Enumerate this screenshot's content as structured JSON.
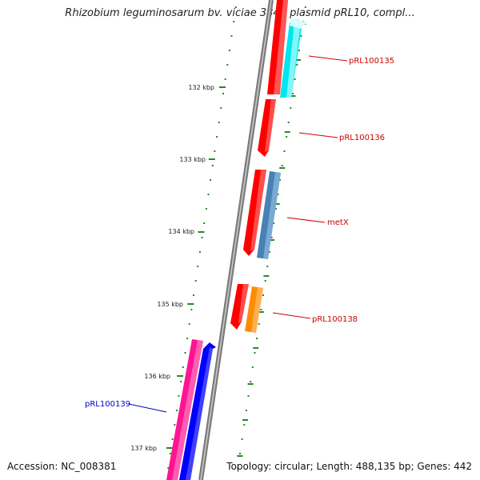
{
  "title": "Rhizobium leguminosarum bv. viciae 3841 plasmid pRL10, compl...",
  "footer": {
    "accession": "Accession: NC_008381",
    "summary": "Topology: circular; Length: 488,135 bp; Genes: 442"
  },
  "ticks": [
    {
      "label": "132 kbp",
      "kbp": 132
    },
    {
      "label": "133 kbp",
      "kbp": 133
    },
    {
      "label": "134 kbp",
      "kbp": 134
    },
    {
      "label": "135 kbp",
      "kbp": 135
    },
    {
      "label": "136 kbp",
      "kbp": 136
    },
    {
      "label": "137 kbp",
      "kbp": 137
    }
  ],
  "genes": [
    {
      "id": "g-top-red",
      "label": "",
      "color": "#ff0000",
      "strand": "forward",
      "start_kbp": 131.0,
      "end_kbp": 131.8
    },
    {
      "id": "g-pRL100135",
      "label": "pRL100135",
      "label_color": "#cc0000",
      "color": "#00e5ee",
      "strand": "forward",
      "start_kbp": 131.0,
      "end_kbp": 132.0
    },
    {
      "id": "g-pRL100136",
      "label": "pRL100136",
      "label_color": "#cc0000",
      "color": "#ff0000",
      "strand": "forward",
      "start_kbp": 132.2,
      "end_kbp": 133.0
    },
    {
      "id": "g-metX-red",
      "label": "",
      "color": "#ff0000",
      "strand": "forward",
      "start_kbp": 133.1,
      "end_kbp": 134.3
    },
    {
      "id": "g-metX",
      "label": "metX",
      "label_color": "#cc0000",
      "color": "#4682b4",
      "strand": "forward",
      "start_kbp": 133.1,
      "end_kbp": 134.3
    },
    {
      "id": "g-pRL100138-red",
      "label": "",
      "color": "#ff0000",
      "strand": "forward",
      "start_kbp": 134.7,
      "end_kbp": 135.3
    },
    {
      "id": "g-pRL100138",
      "label": "pRL100138",
      "label_color": "#cc0000",
      "color": "#ff8c00",
      "strand": "forward",
      "start_kbp": 134.7,
      "end_kbp": 135.3
    },
    {
      "id": "g-pRL100139-pink",
      "label": "",
      "color": "#ff1493",
      "strand": "reverse",
      "start_kbp": 135.5,
      "end_kbp": 137.2
    },
    {
      "id": "g-pRL100139",
      "label": "pRL100139",
      "label_color": "#0000cc",
      "color": "#0000ff",
      "strand": "reverse",
      "start_kbp": 135.5,
      "end_kbp": 137.2
    }
  ]
}
